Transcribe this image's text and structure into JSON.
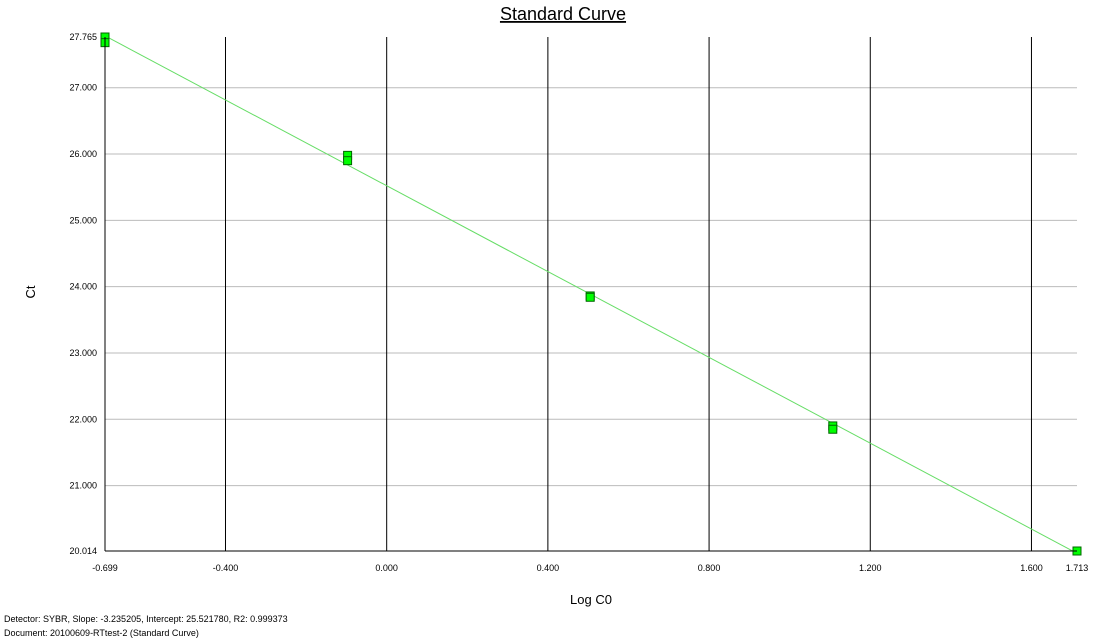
{
  "chart_data": {
    "type": "scatter",
    "title": "Standard Curve",
    "xlabel": "Log C0",
    "ylabel": "Ct",
    "xlim": [
      -0.699,
      1.713
    ],
    "ylim": [
      20.014,
      27.765
    ],
    "x_ticks": [
      -0.699,
      -0.4,
      0.0,
      0.4,
      0.8,
      1.2,
      1.6,
      1.713
    ],
    "x_tick_labels": [
      "-0.699",
      "-0.400",
      "0.000",
      "0.400",
      "0.800",
      "1.200",
      "1.600",
      "1.713"
    ],
    "y_ticks": [
      20.014,
      21.0,
      22.0,
      23.0,
      24.0,
      25.0,
      26.0,
      27.0,
      27.765
    ],
    "y_tick_labels": [
      "20.014",
      "21.000",
      "22.000",
      "23.000",
      "24.000",
      "25.000",
      "26.000",
      "27.000",
      "27.765"
    ],
    "grid": true,
    "series": [
      {
        "type": "scatter",
        "color": "#00ff00",
        "points": [
          {
            "x": -0.699,
            "y": 27.765
          },
          {
            "x": -0.699,
            "y": 27.68
          },
          {
            "x": -0.097,
            "y": 25.98
          },
          {
            "x": -0.097,
            "y": 25.9
          },
          {
            "x": 0.505,
            "y": 23.86
          },
          {
            "x": 0.505,
            "y": 23.84
          },
          {
            "x": 1.107,
            "y": 21.9
          },
          {
            "x": 1.107,
            "y": 21.85
          },
          {
            "x": 1.713,
            "y": 20.014
          }
        ]
      },
      {
        "type": "line",
        "color": "#66dd66",
        "slope": -3.235205,
        "intercept": 25.52178
      }
    ]
  },
  "footer": {
    "line1": "Detector: SYBR, Slope:  -3.235205, Intercept:  25.521780, R2:  0.999373",
    "line2": "Document: 20100609-RTtest-2 (Standard Curve)"
  }
}
